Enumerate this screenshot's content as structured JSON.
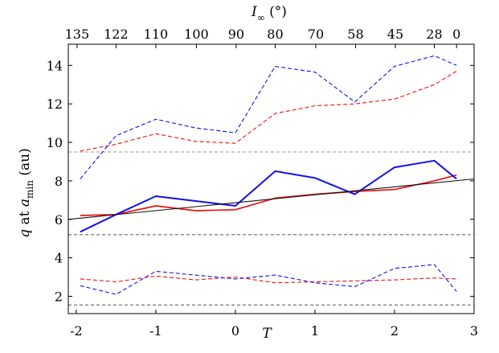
{
  "chart_data": {
    "type": "line",
    "xlabel": "T",
    "ylabel_parts": {
      "q": "q",
      "at": " at ",
      "a": "a",
      "sub": "min",
      "unit": " (au)"
    },
    "top_axis_label_parts": {
      "I": "I",
      "sub": "∞",
      "unit": " (°)"
    },
    "xlim": [
      -2.1,
      3.0
    ],
    "ylim": [
      1.1,
      15.1
    ],
    "x_ticks": [
      {
        "value": -2,
        "label": "-2"
      },
      {
        "value": -1,
        "label": "-1"
      },
      {
        "value": 0,
        "label": "0"
      },
      {
        "value": 1,
        "label": "1"
      },
      {
        "value": 2,
        "label": "2"
      },
      {
        "value": 3,
        "label": "3"
      }
    ],
    "y_ticks": [
      {
        "value": 2,
        "label": "2"
      },
      {
        "value": 4,
        "label": "4"
      },
      {
        "value": 6,
        "label": "6"
      },
      {
        "value": 8,
        "label": "8"
      },
      {
        "value": 10,
        "label": "10"
      },
      {
        "value": 12,
        "label": "12"
      },
      {
        "value": 14,
        "label": "14"
      }
    ],
    "top_ticks": [
      {
        "x": -1.99,
        "label": "135"
      },
      {
        "x": -1.5,
        "label": "122"
      },
      {
        "x": -1.0,
        "label": "110"
      },
      {
        "x": -0.49,
        "label": "100"
      },
      {
        "x": 0.01,
        "label": "90"
      },
      {
        "x": 0.5,
        "label": "80"
      },
      {
        "x": 1.01,
        "label": "70"
      },
      {
        "x": 1.51,
        "label": "58"
      },
      {
        "x": 2.01,
        "label": "45"
      },
      {
        "x": 2.5,
        "label": "28"
      },
      {
        "x": 2.78,
        "label": "0"
      }
    ],
    "reference_lines": [
      {
        "y": 9.5,
        "color": "#999999",
        "dash": "4,3"
      },
      {
        "y": 5.2,
        "color": "#555555",
        "dash": "4,3"
      },
      {
        "y": 1.55,
        "color": "#555555",
        "dash": "4,3"
      }
    ],
    "series": [
      {
        "color": "#ee1111",
        "style": "solid",
        "width": 1.7,
        "points": [
          [
            -1.95,
            6.2
          ],
          [
            -1.5,
            6.25
          ],
          [
            -1.0,
            6.7
          ],
          [
            -0.5,
            6.45
          ],
          [
            0.0,
            6.5
          ],
          [
            0.5,
            7.1
          ],
          [
            1.0,
            7.3
          ],
          [
            1.5,
            7.45
          ],
          [
            2.0,
            7.55
          ],
          [
            2.5,
            8.0
          ],
          [
            2.78,
            8.3
          ]
        ]
      },
      {
        "color": "#1111ee",
        "style": "solid",
        "width": 2.0,
        "points": [
          [
            -1.95,
            5.35
          ],
          [
            -1.5,
            6.25
          ],
          [
            -1.0,
            7.2
          ],
          [
            -0.5,
            6.95
          ],
          [
            0.0,
            6.7
          ],
          [
            0.5,
            8.5
          ],
          [
            1.0,
            8.15
          ],
          [
            1.5,
            7.3
          ],
          [
            2.0,
            8.7
          ],
          [
            2.5,
            9.05
          ],
          [
            2.78,
            8.1
          ]
        ]
      },
      {
        "color": "#111111",
        "style": "solid",
        "width": 1.1,
        "points": [
          [
            -2.1,
            6.0
          ],
          [
            3.0,
            8.1
          ]
        ]
      },
      {
        "color": "#ee1111",
        "style": "dashed",
        "width": 1.1,
        "points": [
          [
            -1.95,
            9.55
          ],
          [
            -1.5,
            9.9
          ],
          [
            -1.0,
            10.45
          ],
          [
            -0.5,
            10.05
          ],
          [
            0.0,
            9.95
          ],
          [
            0.5,
            11.5
          ],
          [
            1.0,
            11.9
          ],
          [
            1.5,
            12.0
          ],
          [
            2.0,
            12.25
          ],
          [
            2.5,
            13.0
          ],
          [
            2.78,
            13.7
          ]
        ]
      },
      {
        "color": "#1111ee",
        "style": "dashed",
        "width": 1.1,
        "points": [
          [
            -1.95,
            8.1
          ],
          [
            -1.5,
            10.35
          ],
          [
            -1.0,
            11.2
          ],
          [
            -0.5,
            10.75
          ],
          [
            0.0,
            10.5
          ],
          [
            0.5,
            13.95
          ],
          [
            1.0,
            13.65
          ],
          [
            1.5,
            12.1
          ],
          [
            2.0,
            13.95
          ],
          [
            2.5,
            14.5
          ],
          [
            2.78,
            14.0
          ]
        ]
      },
      {
        "color": "#ee1111",
        "style": "dashed",
        "width": 1.1,
        "points": [
          [
            -1.95,
            2.9
          ],
          [
            -1.5,
            2.75
          ],
          [
            -1.0,
            3.05
          ],
          [
            -0.5,
            2.85
          ],
          [
            0.0,
            3.0
          ],
          [
            0.5,
            2.7
          ],
          [
            1.0,
            2.75
          ],
          [
            1.5,
            2.8
          ],
          [
            2.0,
            2.85
          ],
          [
            2.5,
            2.95
          ],
          [
            2.78,
            2.9
          ]
        ]
      },
      {
        "color": "#1111ee",
        "style": "dashed",
        "width": 1.1,
        "points": [
          [
            -1.95,
            2.55
          ],
          [
            -1.5,
            2.1
          ],
          [
            -1.0,
            3.3
          ],
          [
            -0.5,
            3.1
          ],
          [
            0.0,
            2.9
          ],
          [
            0.5,
            3.1
          ],
          [
            1.0,
            2.7
          ],
          [
            1.5,
            2.5
          ],
          [
            2.0,
            3.45
          ],
          [
            2.5,
            3.65
          ],
          [
            2.78,
            2.25
          ]
        ]
      }
    ]
  }
}
